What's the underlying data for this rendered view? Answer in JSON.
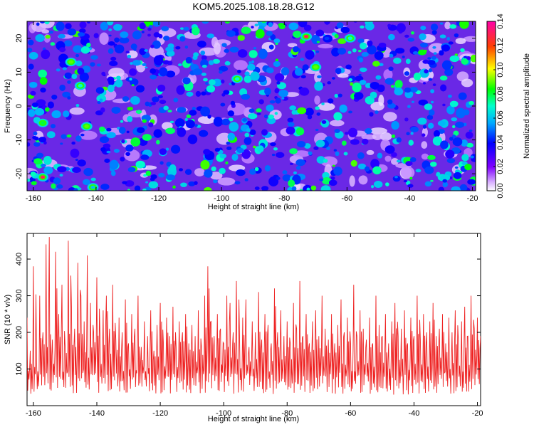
{
  "title": "KOM5.2025.108.18.28.G12",
  "colors": {
    "snr_line": "#ee2222",
    "axis": "#000000",
    "background": "#ffffff"
  },
  "chart_data": [
    {
      "type": "heatmap",
      "title": "",
      "xlabel": "Height of straight line (km)",
      "ylabel": "Frequency (Hz)",
      "xlim": [
        -162,
        -19
      ],
      "ylim": [
        -25,
        25
      ],
      "x_ticks": [
        -160,
        -140,
        -120,
        -100,
        -80,
        -60,
        -40,
        -20
      ],
      "y_ticks": [
        -20,
        -10,
        0,
        10,
        20
      ],
      "grid": false,
      "colorbar": {
        "label": "Normalized spectral amplitude",
        "range": [
          0,
          0.14
        ],
        "ticks": [
          0.0,
          0.02,
          0.04,
          0.06,
          0.08,
          0.1,
          0.12,
          0.14
        ],
        "tick_labels": [
          "0.00",
          "0.02",
          "0.04",
          "0.06",
          "0.08",
          "0.10",
          "0.12",
          "0.14"
        ],
        "colormap": "rainbow (white → violet → blue → cyan → green → yellow → red → magenta)"
      },
      "notable_peaks": [
        {
          "x": -157,
          "y": -21,
          "value": 0.13
        },
        {
          "x": -73,
          "y": 20.5,
          "value": 0.13
        },
        {
          "x": -148,
          "y": 13,
          "value": 0.09
        },
        {
          "x": -157,
          "y": -5,
          "value": 0.08
        },
        {
          "x": -143,
          "y": -6,
          "value": 0.09
        },
        {
          "x": -70,
          "y": 11.5,
          "value": 0.09
        },
        {
          "x": -145,
          "y": 6,
          "value": 0.07
        },
        {
          "x": -95,
          "y": 8,
          "value": 0.07
        },
        {
          "x": -59,
          "y": 20,
          "value": 0.07
        },
        {
          "x": -141,
          "y": -24,
          "value": 0.06
        }
      ]
    },
    {
      "type": "line",
      "title": "",
      "xlabel": "Height of straight line (km)",
      "ylabel": "SNR (10 * v/v)",
      "xlim": [
        -162,
        -19
      ],
      "ylim": [
        0,
        470
      ],
      "x_ticks": [
        -160,
        -140,
        -120,
        -100,
        -80,
        -60,
        -40,
        -20
      ],
      "y_ticks": [
        100,
        200,
        300,
        400
      ],
      "grid": false,
      "series": [
        {
          "x": [
            -162,
            -161,
            -160,
            -159,
            -158,
            -157,
            -156,
            -155,
            -154,
            -153,
            -152,
            -151,
            -150,
            -149,
            -148,
            -147,
            -146,
            -145,
            -144,
            -143,
            -142,
            -141,
            -140,
            -139,
            -138,
            -137,
            -136,
            -135,
            -134,
            -133,
            -132,
            -131,
            -130,
            -129,
            -128,
            -127,
            -126,
            -125,
            -124,
            -123,
            -122,
            -121,
            -120,
            -119,
            -118,
            -117,
            -116,
            -115,
            -114,
            -113,
            -112,
            -111,
            -110,
            -109,
            -108,
            -107,
            -106,
            -105,
            -104,
            -103,
            -102,
            -101,
            -100,
            -99,
            -98,
            -97,
            -96,
            -95,
            -94,
            -93,
            -92,
            -91,
            -90,
            -89,
            -88,
            -87,
            -86,
            -85,
            -84,
            -83,
            -82,
            -81,
            -80,
            -79,
            -78,
            -77,
            -76,
            -75,
            -74,
            -73,
            -72,
            -71,
            -70,
            -69,
            -68,
            -67,
            -66,
            -65,
            -64,
            -63,
            -62,
            -61,
            -60,
            -59,
            -58,
            -57,
            -56,
            -55,
            -54,
            -53,
            -52,
            -51,
            -50,
            -49,
            -48,
            -47,
            -46,
            -45,
            -44,
            -43,
            -42,
            -41,
            -40,
            -39,
            -38,
            -37,
            -36,
            -35,
            -34,
            -33,
            -32,
            -31,
            -30,
            -29,
            -28,
            -27,
            -26,
            -25,
            -24,
            -23,
            -22,
            -21,
            -20,
            -19
          ],
          "y": [
            240,
            150,
            380,
            120,
            300,
            200,
            440,
            460,
            180,
            420,
            250,
            330,
            160,
            450,
            270,
            210,
            390,
            300,
            230,
            410,
            280,
            200,
            350,
            190,
            260,
            300,
            210,
            330,
            180,
            240,
            200,
            290,
            170,
            250,
            210,
            300,
            160,
            230,
            190,
            260,
            150,
            220,
            280,
            170,
            240,
            190,
            270,
            160,
            230,
            200,
            250,
            170,
            220,
            190,
            260,
            160,
            300,
            380,
            230,
            190,
            250,
            210,
            170,
            300,
            280,
            200,
            340,
            180,
            240,
            290,
            160,
            230,
            200,
            310,
            180,
            250,
            220,
            170,
            320,
            200,
            260,
            190,
            230,
            170,
            280,
            210,
            340,
            190,
            250,
            170,
            230,
            260,
            190,
            300,
            210,
            180,
            250,
            170,
            220,
            290,
            200,
            240,
            170,
            330,
            190,
            260,
            210,
            180,
            240,
            170,
            300,
            220,
            190,
            250,
            170,
            230,
            280,
            190,
            210,
            260,
            170,
            240,
            190,
            300,
            180,
            250,
            200,
            230,
            280,
            190,
            210,
            250,
            170,
            240,
            200,
            260,
            180,
            230,
            270,
            190,
            300,
            210,
            240,
            190
          ]
        }
      ]
    }
  ]
}
